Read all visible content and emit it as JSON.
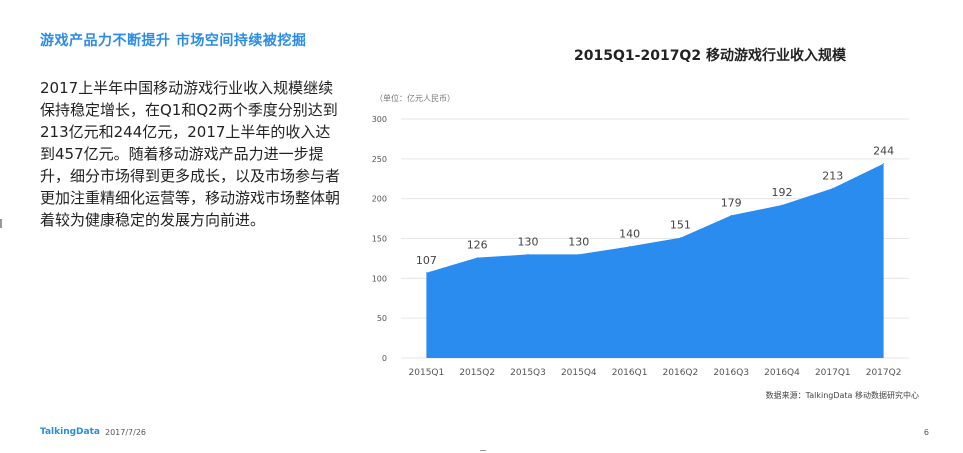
{
  "left_panel": {
    "title": "游戏产品力不断提升 市场空间持续被挖掘",
    "body": "2017上半年中国移动游戏行业收入规模继续保持稳定增长，在Q1和Q2两个季度分别达到213亿元和244亿元，2017上半年的收入达到457亿元。随着移动游戏产品力进一步提升，细分市场得到更多成长，以及市场参与者更加注重精细化运营等，移动游戏市场整体朝着较为健康稳定的发展方向前进。"
  },
  "chart_data": {
    "type": "area",
    "title": "2015Q1-2017Q2  移动游戏行业收入规模",
    "unit_note": "（单位：亿元人民币）",
    "categories": [
      "2015Q1",
      "2015Q2",
      "2015Q3",
      "2015Q4",
      "2016Q1",
      "2016Q2",
      "2016Q3",
      "2016Q4",
      "2017Q1",
      "2017Q2"
    ],
    "values": [
      107,
      126,
      130,
      130,
      140,
      151,
      179,
      192,
      213,
      244
    ],
    "ylim": [
      0,
      300
    ],
    "yticks": [
      0,
      50,
      100,
      150,
      200,
      250,
      300
    ],
    "grid": true,
    "color": "#2b8cf0",
    "source": "数据来源：TalkingData 移动数据研究中心"
  },
  "footer": {
    "brand": "TalkingData",
    "date": "2017/7/26",
    "page": "6"
  }
}
